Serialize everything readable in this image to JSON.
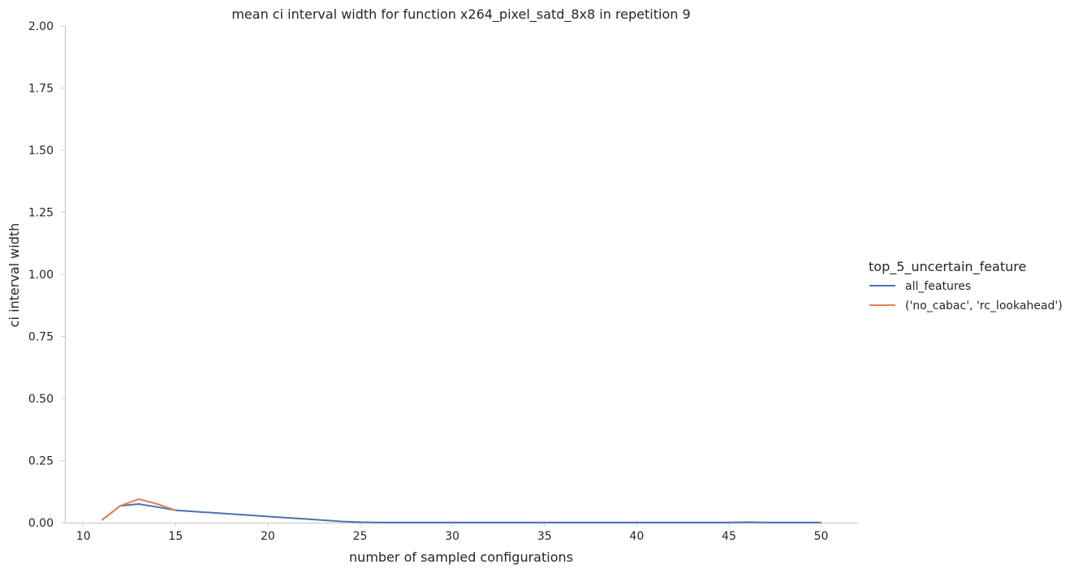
{
  "chart_data": {
    "type": "line",
    "title": "mean ci interval width for function x264_pixel_satd_8x8 in repetition 9",
    "xlabel": "number of sampled configurations",
    "ylabel": "ci interval width",
    "xlim": [
      9,
      52
    ],
    "ylim": [
      0,
      2.0
    ],
    "xticks": [
      10,
      15,
      20,
      25,
      30,
      35,
      40,
      45,
      50
    ],
    "xtick_labels": [
      "10",
      "15",
      "20",
      "25",
      "30",
      "35",
      "40",
      "45",
      "50"
    ],
    "yticks": [
      0,
      0.25,
      0.5,
      0.75,
      1.0,
      1.25,
      1.5,
      1.75,
      2.0
    ],
    "ytick_labels": [
      "0.00",
      "0.25",
      "0.50",
      "0.75",
      "1.00",
      "1.25",
      "1.50",
      "1.75",
      "2.00"
    ],
    "grid": false,
    "legend": {
      "title": "top_5_uncertain_feature",
      "placement": "right"
    },
    "series": [
      {
        "name": "all_features",
        "color": "#4c72b0",
        "x": [
          11,
          12,
          13,
          14,
          15,
          16,
          17,
          18,
          19,
          20,
          21,
          22,
          23,
          24,
          25,
          26,
          27,
          28,
          29,
          30,
          31,
          32,
          33,
          34,
          35,
          36,
          37,
          38,
          39,
          40,
          41,
          42,
          43,
          44,
          45,
          46,
          47,
          48,
          49,
          50
        ],
        "y": [
          0.01,
          0.068,
          0.075,
          0.063,
          0.05,
          0.045,
          0.04,
          0.035,
          0.03,
          0.025,
          0.02,
          0.015,
          0.01,
          0.005,
          0.002,
          0.001,
          0.001,
          0.001,
          0.001,
          0.001,
          0.001,
          0.001,
          0.001,
          0.001,
          0.001,
          0.001,
          0.001,
          0.001,
          0.001,
          0.001,
          0.001,
          0.001,
          0.001,
          0.001,
          0.001,
          0.002,
          0.001,
          0.001,
          0.001,
          0.001
        ]
      },
      {
        "name": "('no_cabac', 'rc_lookahead')",
        "color": "#dd8452",
        "x": [
          11,
          12,
          13,
          14,
          15
        ],
        "y": [
          0.01,
          0.068,
          0.095,
          0.075,
          0.05
        ]
      }
    ]
  }
}
